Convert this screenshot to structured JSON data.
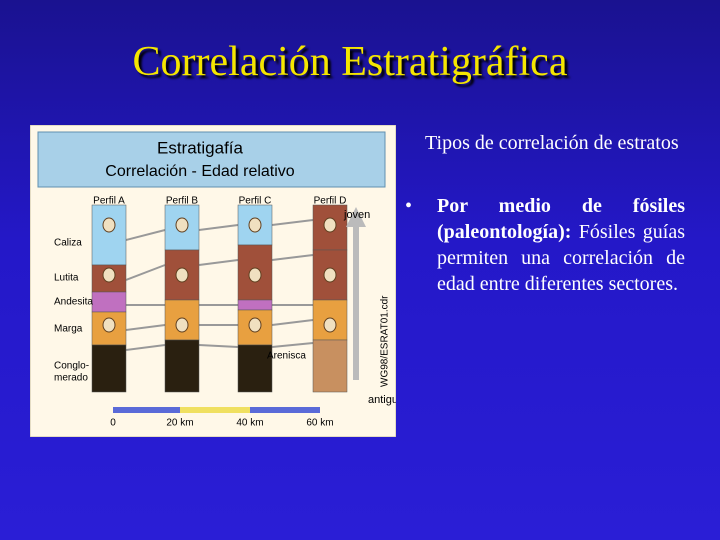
{
  "title": "Correlación Estratigráfica",
  "figure": {
    "header": {
      "title": "Estratigafía",
      "subtitle": "Correlación - Edad relativo"
    },
    "profiles": [
      "Perfil A",
      "Perfil B",
      "Perfil C",
      "Perfil D"
    ],
    "arrow": {
      "top": "joven",
      "bottom": "antiguo"
    },
    "rock_labels": [
      "Caliza",
      "Lutita",
      "Andesita",
      "Marga"
    ],
    "conglomerado_lines": [
      "Conglo-",
      "merado"
    ],
    "side_label": "Arenisca",
    "credit": "WG98/ESRAT01.cdr",
    "scale": [
      "0",
      "20 km",
      "40 km",
      "60 km"
    ]
  },
  "text": {
    "heading": "Tipos de correlación de estratos",
    "bullet": "•",
    "bullet_bold": "Por medio de fósiles (paleontología):",
    "bullet_rest": "Fósiles guías permiten una correlación de edad entre diferentes sectores."
  }
}
